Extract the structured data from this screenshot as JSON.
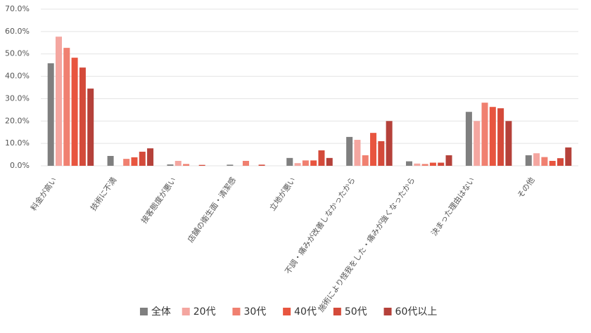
{
  "chart_data": {
    "type": "bar",
    "categories": [
      "料金が高い",
      "技術に不満",
      "接客態度が悪い",
      "店舗の衛生面・清潔感",
      "立地が悪い",
      "不調・痛みが改善しなかったから",
      "施術により怪我をした・痛みが強くなったから",
      "決まった理由はない",
      "その他"
    ],
    "series": [
      {
        "name": "全体",
        "color": "#7f7f7f",
        "values": [
          45.8,
          4.4,
          0.6,
          0.5,
          3.5,
          12.9,
          2.0,
          24.1,
          4.7
        ]
      },
      {
        "name": "20代",
        "color": "#f4a6a0",
        "values": [
          57.7,
          0,
          2.2,
          0,
          1.2,
          11.6,
          1.0,
          20.0,
          5.6
        ]
      },
      {
        "name": "30代",
        "color": "#f08070",
        "values": [
          52.7,
          3.1,
          0.8,
          2.2,
          2.4,
          4.7,
          0.8,
          28.2,
          3.9
        ]
      },
      {
        "name": "40代",
        "color": "#e8553f",
        "values": [
          48.3,
          3.8,
          0,
          0,
          2.4,
          14.7,
          1.4,
          26.3,
          2.2
        ]
      },
      {
        "name": "50代",
        "color": "#d44a3a",
        "values": [
          43.9,
          6.3,
          0.4,
          0.5,
          6.9,
          11.0,
          1.4,
          25.7,
          3.4
        ]
      },
      {
        "name": "60代以上",
        "color": "#b5413a",
        "values": [
          34.5,
          7.8,
          0,
          0,
          3.5,
          20.0,
          4.7,
          20.0,
          8.2
        ]
      }
    ],
    "ylim": [
      0,
      70
    ],
    "yticks": [
      {
        "value": 0,
        "label": "0.0%"
      },
      {
        "value": 10,
        "label": "10.0%"
      },
      {
        "value": 20,
        "label": "20.0%"
      },
      {
        "value": 30,
        "label": "30.0%"
      },
      {
        "value": 40,
        "label": "40.0%"
      },
      {
        "value": 50,
        "label": "50.0%"
      },
      {
        "value": 60,
        "label": "60.0%"
      },
      {
        "value": 70,
        "label": "70.0%"
      }
    ],
    "grid": true,
    "legend": "bottom"
  }
}
